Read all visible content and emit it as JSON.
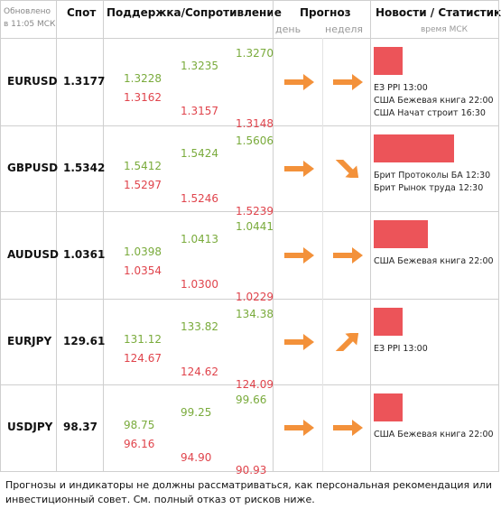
{
  "header": {
    "updated": "Обновлено в 11:05 МСК",
    "spot": "Спот",
    "levels": "Поддержка/Сопротивление",
    "forecast": "Прогноз",
    "day": "день",
    "week": "неделя",
    "news": "Новости / Статистика",
    "news_time": "время МСК"
  },
  "rows": [
    {
      "pair": "EURUSD",
      "spot": "1.3177",
      "levels": [
        [
          "1.3228",
          "1.3162"
        ],
        [
          "1.3235",
          "1.3157"
        ],
        [
          "1.3270",
          "1.3148"
        ]
      ],
      "news": [
        "ЕЗ PPI 13:00",
        "США Бежевая книга 22:00",
        "США Начат строит 16:30"
      ]
    },
    {
      "pair": "GBPUSD",
      "spot": "1.5342",
      "levels": [
        [
          "1.5412",
          "1.5297"
        ],
        [
          "1.5424",
          "1.5246"
        ],
        [
          "1.5606",
          "1.5239"
        ]
      ],
      "news": [
        "Брит Протоколы БА 12:30",
        "Брит Рынок труда 12:30"
      ]
    },
    {
      "pair": "AUDUSD",
      "spot": "1.0361",
      "levels": [
        [
          "1.0398",
          "1.0354"
        ],
        [
          "1.0413",
          "1.0300"
        ],
        [
          "1.0441",
          "1.0229"
        ]
      ],
      "news": [
        "США Бежевая книга 22:00"
      ]
    },
    {
      "pair": "EURJPY",
      "spot": "129.61",
      "levels": [
        [
          "131.12",
          "124.67"
        ],
        [
          "133.82",
          "124.62"
        ],
        [
          "134.38",
          "124.09"
        ]
      ],
      "news": [
        "ЕЗ PPI 13:00"
      ]
    },
    {
      "pair": "USDJPY",
      "spot": "98.37",
      "levels": [
        [
          "98.75",
          "96.16"
        ],
        [
          "99.25",
          "94.90"
        ],
        [
          "99.66",
          "90.93"
        ]
      ],
      "news": [
        "США Бежевая книга 22:00"
      ]
    }
  ],
  "footer": "Прогнозы и индикаторы не должны рассматриваться, как персональная рекомендация или инвестиционный совет. См. полный отказ от рисков ниже."
}
